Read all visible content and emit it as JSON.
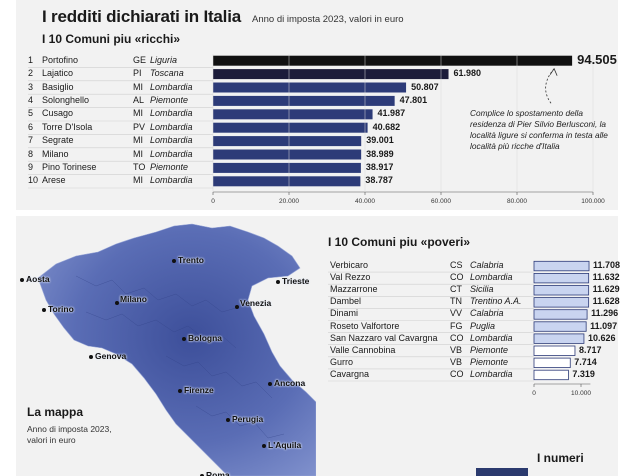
{
  "header": {
    "title": "I redditi dichiarati in Italia",
    "subtitle": "Anno di imposta 2023, valori in euro"
  },
  "rich_section": {
    "heading": "I 10 Comuni piu «ricchi»",
    "note": "Complice lo spostamento della residenza di Pier Silvio Berlusconi, la località ligure si conferma in testa alle località più ricche d'Italia"
  },
  "poor_section": {
    "heading": "I 10 Comuni piu «poveri»"
  },
  "map_section": {
    "title": "La mappa",
    "subtitle_line1": "Anno di imposta 2023,",
    "subtitle_line2": "valori in euro",
    "cities": [
      "Aosta",
      "Torino",
      "Milano",
      "Trento",
      "Trieste",
      "Venezia",
      "Genova",
      "Bologna",
      "Firenze",
      "Ancona",
      "Perugia",
      "L'Aquila",
      "Roma"
    ]
  },
  "numbers_section": {
    "heading": "I numeri"
  },
  "chart_data": [
    {
      "type": "bar",
      "orientation": "horizontal",
      "title": "I 10 Comuni piu «ricchi»",
      "xlim": [
        0,
        100000
      ],
      "x_ticks": [
        "0",
        "20.000",
        "40.000",
        "60.000",
        "80.000",
        "100.000"
      ],
      "tick_values": [
        0,
        20000,
        40000,
        60000,
        80000,
        100000
      ],
      "rows": [
        {
          "rank": "1",
          "comune": "Portofino",
          "prov": "GE",
          "regione": "Liguria",
          "value": 94505,
          "label": "94.505"
        },
        {
          "rank": "2",
          "comune": "Lajatico",
          "prov": "PI",
          "regione": "Toscana",
          "value": 61980,
          "label": "61.980"
        },
        {
          "rank": "3",
          "comune": "Basiglio",
          "prov": "MI",
          "regione": "Lombardia",
          "value": 50807,
          "label": "50.807"
        },
        {
          "rank": "4",
          "comune": "Solonghello",
          "prov": "AL",
          "regione": "Piemonte",
          "value": 47801,
          "label": "47.801"
        },
        {
          "rank": "5",
          "comune": "Cusago",
          "prov": "MI",
          "regione": "Lombardia",
          "value": 41987,
          "label": "41.987"
        },
        {
          "rank": "6",
          "comune": "Torre D'Isola",
          "prov": "PV",
          "regione": "Lombardia",
          "value": 40682,
          "label": "40.682"
        },
        {
          "rank": "7",
          "comune": "Segrate",
          "prov": "MI",
          "regione": "Lombardia",
          "value": 39001,
          "label": "39.001"
        },
        {
          "rank": "8",
          "comune": "Milano",
          "prov": "MI",
          "regione": "Lombardia",
          "value": 38989,
          "label": "38.989"
        },
        {
          "rank": "9",
          "comune": "Pino Torinese",
          "prov": "TO",
          "regione": "Piemonte",
          "value": 38917,
          "label": "38.917"
        },
        {
          "rank": "10",
          "comune": "Arese",
          "prov": "MI",
          "regione": "Lombardia",
          "value": 38787,
          "label": "38.787"
        }
      ],
      "colors": {
        "top": "#111111",
        "second": "#1c1c3a",
        "others": "#2d3b78"
      }
    },
    {
      "type": "bar",
      "orientation": "horizontal",
      "title": "I 10 Comuni piu «poveri»",
      "xlim": [
        0,
        12000
      ],
      "x_ticks": [
        "0",
        "10.000"
      ],
      "tick_values": [
        0,
        10000
      ],
      "rows": [
        {
          "comune": "Verbicaro",
          "prov": "CS",
          "regione": "Calabria",
          "value": 11708,
          "label": "11.708"
        },
        {
          "comune": "Val Rezzo",
          "prov": "CO",
          "regione": "Lombardia",
          "value": 11632,
          "label": "11.632"
        },
        {
          "comune": "Mazzarrone",
          "prov": "CT",
          "regione": "Sicilia",
          "value": 11629,
          "label": "11.629"
        },
        {
          "comune": "Dambel",
          "prov": "TN",
          "regione": "Trentino A.A.",
          "value": 11628,
          "label": "11.628"
        },
        {
          "comune": "Dinami",
          "prov": "VV",
          "regione": "Calabria",
          "value": 11296,
          "label": "11.296"
        },
        {
          "comune": "Roseto Valfortore",
          "prov": "FG",
          "regione": "Puglia",
          "value": 11097,
          "label": "11.097"
        },
        {
          "comune": "San Nazzaro val Cavargna",
          "prov": "CO",
          "regione": "Lombardia",
          "value": 10626,
          "label": "10.626"
        },
        {
          "comune": "Valle Cannobina",
          "prov": "VB",
          "regione": "Piemonte",
          "value": 8717,
          "label": "8.717"
        },
        {
          "comune": "Gurro",
          "prov": "VB",
          "regione": "Piemonte",
          "value": 7714,
          "label": "7.714"
        },
        {
          "comune": "Cavargna",
          "prov": "CO",
          "regione": "Lombardia",
          "value": 7319,
          "label": "7.319"
        }
      ],
      "colors": {
        "fill_high": "#c9d4f0",
        "fill_low": "#ffffff",
        "stroke": "#2d3b78"
      }
    }
  ]
}
